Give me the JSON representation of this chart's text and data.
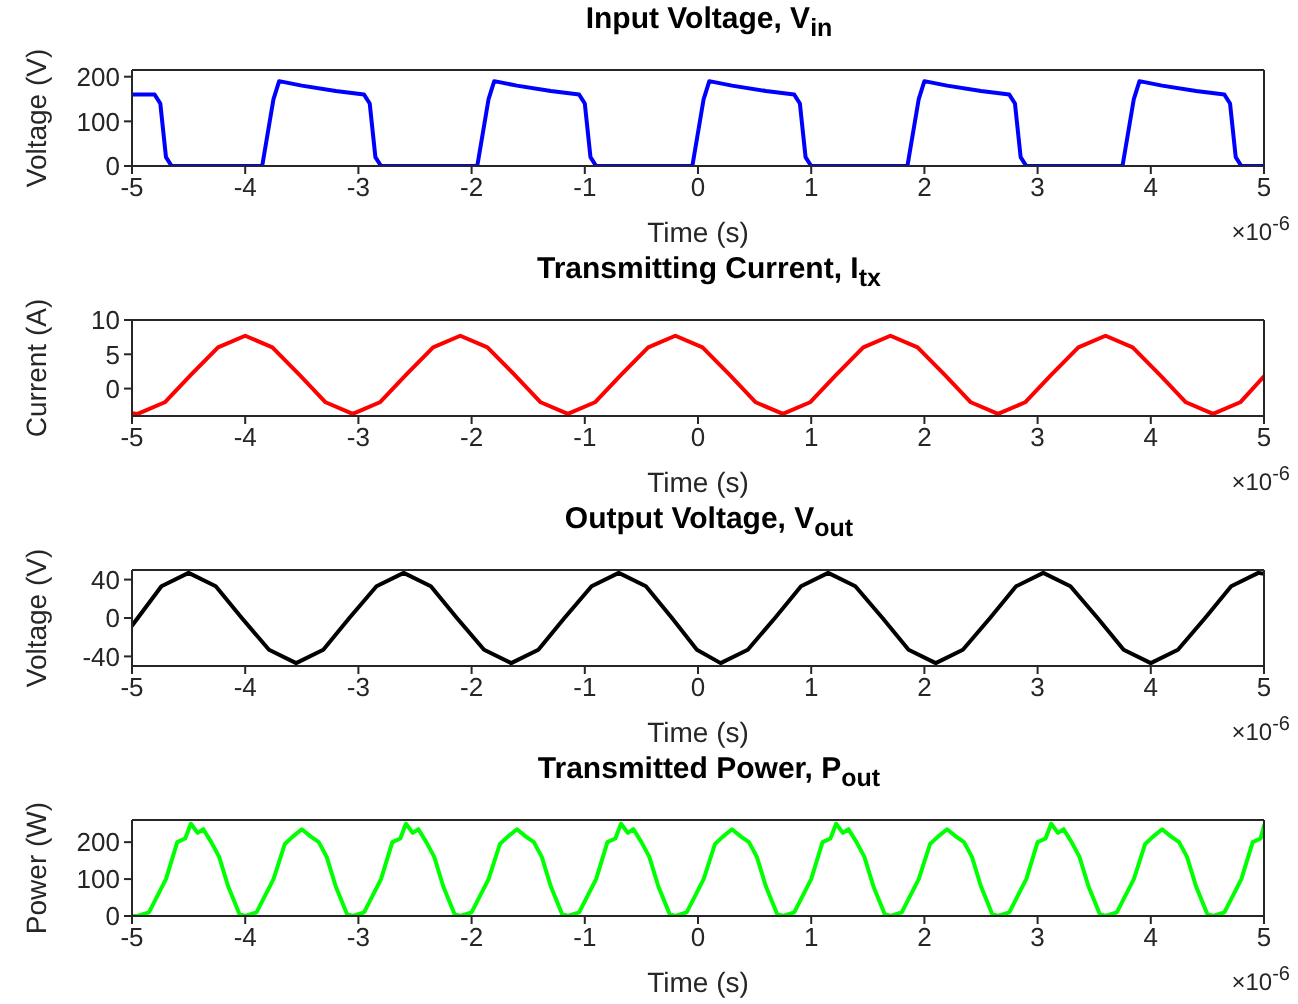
{
  "chart_data": [
    {
      "type": "line",
      "title": "Input Voltage, V$_{in}$",
      "xlabel": "Time (s)",
      "ylabel": "Voltage (V)",
      "xlim": [
        -5,
        5
      ],
      "xticks": [
        -5,
        -4,
        -3,
        -2,
        -1,
        0,
        1,
        2,
        3,
        4,
        5
      ],
      "ylim": [
        0,
        215
      ],
      "yticks": [
        0,
        100,
        200
      ],
      "line_style": "solid",
      "annotations": [
        "×10$^{-6}$"
      ],
      "series": [
        {
          "color": "#0000ff",
          "x": [
            -5,
            -4.8,
            -4.75,
            -4.7,
            -4.65,
            -3.85,
            -3.75,
            -3.7,
            -3.5,
            -3.2,
            -2.95,
            -2.9,
            -2.85,
            -2.8,
            -1.95,
            -1.85,
            -1.8,
            -1.6,
            -1.3,
            -1.05,
            -1.0,
            -0.95,
            -0.9,
            -0.05,
            0.05,
            0.1,
            0.3,
            0.6,
            0.85,
            0.9,
            0.95,
            1.0,
            1.85,
            1.95,
            2.0,
            2.2,
            2.5,
            2.75,
            2.8,
            2.85,
            2.9,
            3.75,
            3.85,
            3.9,
            4.1,
            4.4,
            4.65,
            4.7,
            4.75,
            4.8,
            5.0
          ],
          "values": [
            160,
            160,
            140,
            20,
            0,
            0,
            150,
            190,
            180,
            168,
            160,
            140,
            20,
            0,
            0,
            150,
            190,
            180,
            168,
            160,
            140,
            20,
            0,
            0,
            150,
            190,
            180,
            168,
            160,
            140,
            20,
            0,
            0,
            150,
            190,
            180,
            168,
            160,
            140,
            20,
            0,
            0,
            150,
            190,
            180,
            168,
            160,
            140,
            20,
            0,
            0
          ]
        }
      ]
    },
    {
      "type": "line",
      "title": "Transmitting Current, I$_{tx}$",
      "xlabel": "Time (s)",
      "ylabel": "Current (A)",
      "xlim": [
        -5,
        5
      ],
      "xticks": [
        -5,
        -4,
        -3,
        -2,
        -1,
        0,
        1,
        2,
        3,
        4,
        5
      ],
      "ylim": [
        -4,
        10
      ],
      "yticks": [
        0,
        5,
        10
      ],
      "line_style": "solid",
      "annotations": [
        "×10$^{-6}$"
      ],
      "series": [
        {
          "color": "#ff0000",
          "x": [
            -5,
            -4.95,
            -4.71,
            -4.48,
            -4.24,
            -4.0,
            -3.76,
            -3.52,
            -3.29,
            -3.05,
            -2.81,
            -2.58,
            -2.34,
            -2.1,
            -1.86,
            -1.62,
            -1.39,
            -1.15,
            -0.91,
            -0.68,
            -0.44,
            -0.2,
            0.04,
            0.28,
            0.51,
            0.75,
            0.99,
            1.22,
            1.46,
            1.7,
            1.94,
            2.18,
            2.41,
            2.65,
            2.89,
            3.12,
            3.36,
            3.6,
            3.84,
            4.08,
            4.31,
            4.55,
            4.79,
            5.0
          ],
          "values": [
            -3.6,
            -3.7,
            -2,
            2,
            6,
            7.7,
            6,
            2,
            -2,
            -3.7,
            -2,
            2,
            6,
            7.7,
            6,
            2,
            -2,
            -3.7,
            -2,
            2,
            6,
            7.7,
            6,
            2,
            -2,
            -3.7,
            -2,
            2,
            6,
            7.7,
            6,
            2,
            -2,
            -3.7,
            -2,
            2,
            6,
            7.7,
            6,
            2,
            -2,
            -3.7,
            -2,
            1.8
          ]
        }
      ]
    },
    {
      "type": "line",
      "title": "Output Voltage, V$_{out}$",
      "xlabel": "Time (s)",
      "ylabel": "Voltage (V)",
      "xlim": [
        -5,
        5
      ],
      "xticks": [
        -5,
        -4,
        -3,
        -2,
        -1,
        0,
        1,
        2,
        3,
        4,
        5
      ],
      "ylim": [
        -50,
        50
      ],
      "yticks": [
        -40,
        0,
        40
      ],
      "line_style": "solid",
      "annotations": [
        "×10$^{-6}$"
      ],
      "series": [
        {
          "color": "#000000",
          "x": [
            -5,
            -4.74,
            -4.5,
            -4.26,
            -4.03,
            -3.79,
            -3.55,
            -3.31,
            -3.08,
            -2.84,
            -2.6,
            -2.36,
            -2.13,
            -1.89,
            -1.65,
            -1.41,
            -1.18,
            -0.94,
            -0.7,
            -0.46,
            -0.23,
            -0.01,
            0.2,
            0.44,
            0.68,
            0.91,
            1.15,
            1.39,
            1.63,
            1.86,
            2.1,
            2.34,
            2.58,
            2.81,
            3.05,
            3.29,
            3.53,
            3.76,
            4.0,
            4.24,
            4.48,
            4.71,
            4.95,
            5.0
          ],
          "values": [
            -8,
            33,
            47,
            33,
            0,
            -33,
            -47,
            -33,
            0,
            33,
            47,
            33,
            0,
            -33,
            -47,
            -33,
            0,
            33,
            47,
            33,
            0,
            -33,
            -47,
            -33,
            0,
            33,
            47,
            33,
            0,
            -33,
            -47,
            -33,
            0,
            33,
            47,
            33,
            0,
            -33,
            -47,
            -33,
            0,
            33,
            47,
            46
          ]
        }
      ]
    },
    {
      "type": "line",
      "title": "Transmitted Power, P$_{out}$",
      "xlabel": "Time (s)",
      "ylabel": "Power (W)",
      "xlim": [
        -5,
        5
      ],
      "xticks": [
        -5,
        -4,
        -3,
        -2,
        -1,
        0,
        1,
        2,
        3,
        4,
        5
      ],
      "ylim": [
        0,
        260
      ],
      "yticks": [
        0,
        100,
        200
      ],
      "line_style": "solid",
      "annotations": [
        "×10$^{-6}$"
      ],
      "series": [
        {
          "color": "#00ff00",
          "x": [
            -5,
            -4.95,
            -4.85,
            -4.7,
            -4.6,
            -4.53,
            -4.48,
            -4.42,
            -4.37,
            -4.3,
            -4.23,
            -4.15,
            -4.05,
            -4.0,
            -3.9,
            -3.75,
            -3.65,
            -3.58,
            -3.5,
            -3.42,
            -3.35,
            -3.28,
            -3.2,
            -3.1,
            -3.05,
            -2.95,
            -2.8,
            -2.7,
            -2.63,
            -2.58,
            -2.52,
            -2.47,
            -2.4,
            -2.33,
            -2.25,
            -2.15,
            -2.1,
            -2.0,
            -1.85,
            -1.75,
            -1.68,
            -1.6,
            -1.52,
            -1.45,
            -1.38,
            -1.3,
            -1.2,
            -1.15,
            -1.05,
            -0.9,
            -0.8,
            -0.73,
            -0.68,
            -0.62,
            -0.57,
            -0.5,
            -0.43,
            -0.35,
            -0.25,
            -0.2,
            -0.1,
            0.05,
            0.15,
            0.22,
            0.3,
            0.38,
            0.45,
            0.52,
            0.6,
            0.7,
            0.75,
            0.85,
            1.0,
            1.1,
            1.17,
            1.22,
            1.28,
            1.33,
            1.4,
            1.47,
            1.55,
            1.65,
            1.7,
            1.8,
            1.95,
            2.05,
            2.12,
            2.2,
            2.28,
            2.35,
            2.42,
            2.5,
            2.6,
            2.65,
            2.75,
            2.9,
            3.0,
            3.07,
            3.12,
            3.18,
            3.23,
            3.3,
            3.37,
            3.45,
            3.55,
            3.6,
            3.7,
            3.85,
            3.95,
            4.02,
            4.1,
            4.18,
            4.25,
            4.32,
            4.4,
            4.5,
            4.55,
            4.65,
            4.8,
            4.9,
            4.97,
            5.0
          ],
          "values": [
            0,
            0,
            10,
            100,
            200,
            210,
            250,
            225,
            235,
            200,
            160,
            80,
            5,
            0,
            10,
            100,
            195,
            215,
            235,
            215,
            200,
            160,
            80,
            5,
            0,
            10,
            100,
            200,
            210,
            250,
            225,
            235,
            200,
            160,
            80,
            5,
            0,
            10,
            100,
            195,
            215,
            235,
            215,
            200,
            160,
            80,
            5,
            0,
            10,
            100,
            200,
            210,
            250,
            225,
            235,
            200,
            160,
            80,
            5,
            0,
            10,
            100,
            195,
            215,
            235,
            215,
            200,
            160,
            80,
            5,
            0,
            10,
            100,
            200,
            210,
            250,
            225,
            235,
            200,
            160,
            80,
            5,
            0,
            10,
            100,
            195,
            215,
            235,
            215,
            200,
            160,
            80,
            5,
            0,
            10,
            100,
            200,
            210,
            250,
            225,
            235,
            200,
            160,
            80,
            5,
            0,
            10,
            100,
            195,
            215,
            235,
            215,
            200,
            160,
            80,
            5,
            0,
            10,
            100,
            200,
            210,
            245
          ]
        }
      ]
    }
  ]
}
